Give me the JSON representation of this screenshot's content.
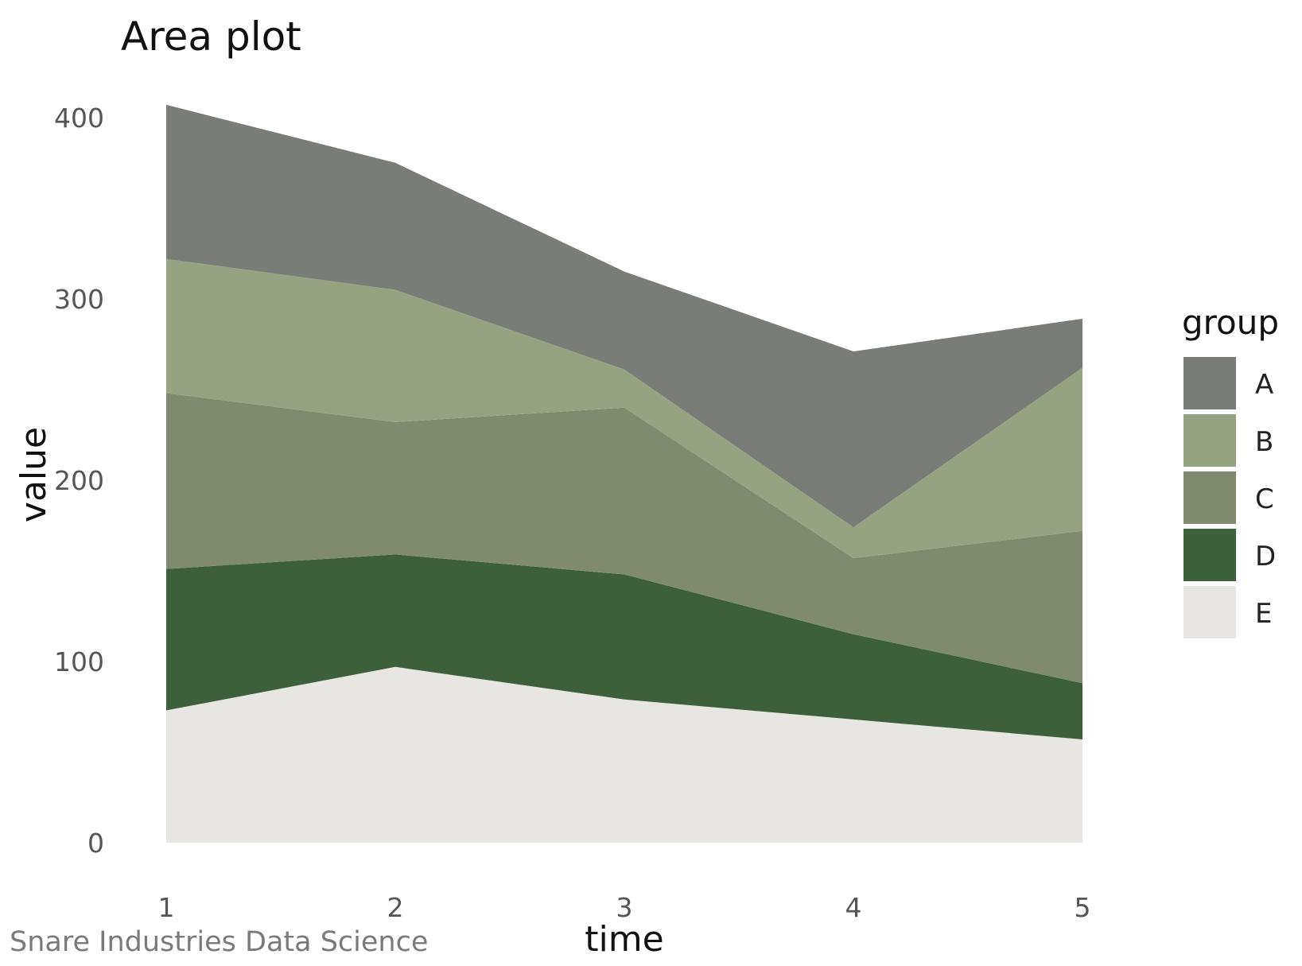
{
  "chart_data": {
    "type": "area",
    "stacked": true,
    "title": "Area plot",
    "xlabel": "time",
    "ylabel": "value",
    "caption": "Snare Industries Data Science",
    "x": [
      1,
      2,
      3,
      4,
      5
    ],
    "xlim": [
      1,
      5
    ],
    "ylim": [
      0,
      410
    ],
    "yticks": [
      0,
      100,
      200,
      300,
      400
    ],
    "grid": false,
    "legend": {
      "title": "group",
      "position": "right",
      "order": [
        "A",
        "B",
        "C",
        "D",
        "E"
      ]
    },
    "series": [
      {
        "name": "E",
        "color": "#e8e6e2",
        "values": [
          73,
          97,
          79,
          68,
          57
        ]
      },
      {
        "name": "D",
        "color": "#3e5f3b",
        "values": [
          78,
          62,
          69,
          47,
          31
        ]
      },
      {
        "name": "C",
        "color": "#7f8a70",
        "values": [
          97,
          73,
          92,
          42,
          84
        ]
      },
      {
        "name": "B",
        "color": "#96a383",
        "values": [
          74,
          73,
          21,
          17,
          90
        ]
      },
      {
        "name": "A",
        "color": "#7a7c78",
        "values": [
          85,
          70,
          54,
          97,
          27
        ]
      }
    ]
  }
}
